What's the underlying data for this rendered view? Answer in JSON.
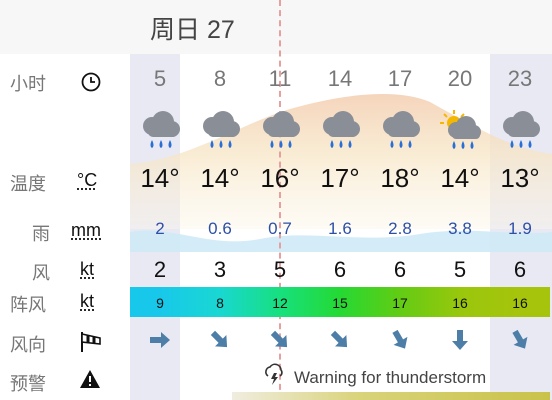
{
  "day": {
    "title": "周日 27"
  },
  "labels": {
    "hour": "小时",
    "temperature": "温度",
    "rain": "雨",
    "wind": "风",
    "gust": "阵风",
    "direction": "风向",
    "warning": "预警"
  },
  "units": {
    "temperature": "°C",
    "rain": "mm",
    "wind": "kt",
    "gust": "kt"
  },
  "icons": {
    "hour": "clock-icon",
    "direction": "windsock-icon",
    "warning": "warning-triangle-icon",
    "thunder": "thunderstorm-icon"
  },
  "hours": [
    "5",
    "8",
    "11",
    "14",
    "17",
    "20",
    "23"
  ],
  "weather_icons": [
    "cloud-rain-icon",
    "cloud-rain-icon",
    "cloud-rain-icon",
    "cloud-rain-icon",
    "cloud-rain-icon",
    "sun-cloud-rain-icon",
    "cloud-rain-icon"
  ],
  "temperatures": [
    "14°",
    "14°",
    "16°",
    "17°",
    "18°",
    "14°",
    "13°"
  ],
  "rain": [
    "2",
    "0.6",
    "0.7",
    "1.6",
    "2.8",
    "3.8",
    "1.9"
  ],
  "wind": [
    "2",
    "3",
    "5",
    "6",
    "6",
    "5",
    "6"
  ],
  "gusts": [
    "9",
    "8",
    "12",
    "15",
    "17",
    "16",
    "16"
  ],
  "gust_colors": [
    "#18c8ea",
    "#19d7d3",
    "#17e07d",
    "#25d933",
    "#61cc14",
    "#9ac70c",
    "#a6c40b"
  ],
  "wind_direction_degrees": [
    270,
    315,
    315,
    315,
    330,
    0,
    330
  ],
  "warning": {
    "text": "Warning for thunderstorm"
  }
}
